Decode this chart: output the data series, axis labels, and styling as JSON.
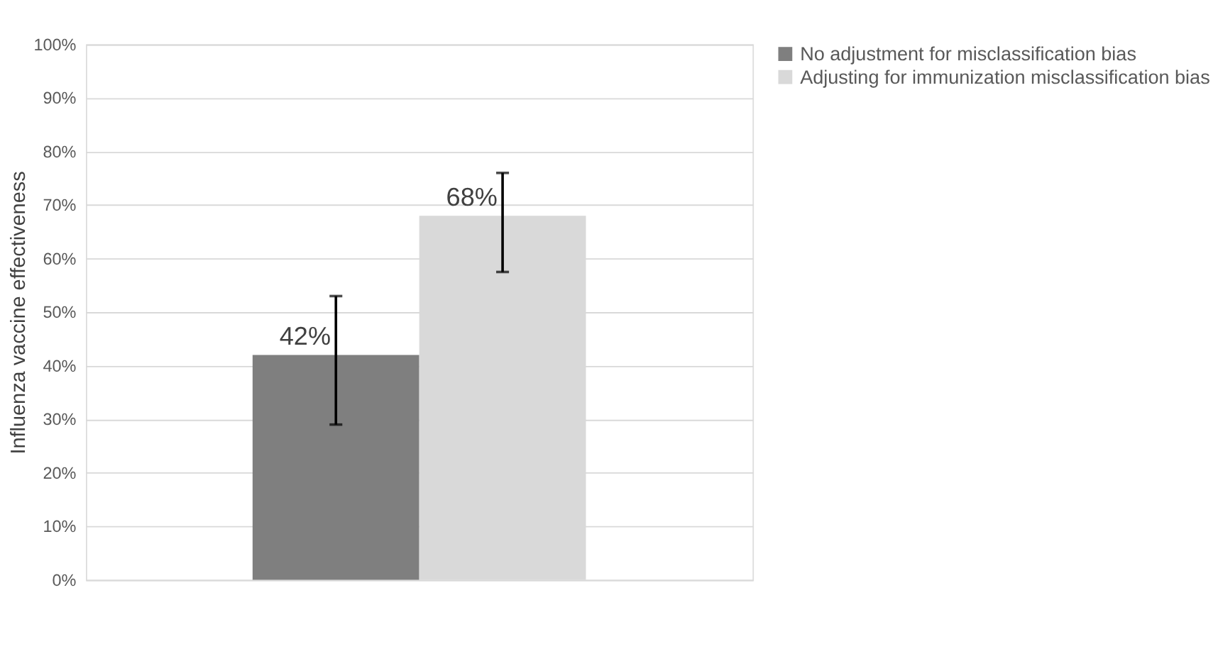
{
  "chart_data": {
    "type": "bar",
    "categories": [
      null
    ],
    "ylabel": "Influenza vaccine effectiveness",
    "series": [
      {
        "name": "No adjustment for misclassification bias",
        "color": "#7f7f7f",
        "values": [
          42
        ],
        "errors": [
          [
            29,
            53
          ]
        ],
        "value_labels": [
          "42%"
        ]
      },
      {
        "name": "Adjusting for immunization misclassification bias",
        "color": "#d9d9d9",
        "values": [
          68
        ],
        "errors": [
          [
            57.5,
            76
          ]
        ],
        "value_labels": [
          "68%"
        ]
      }
    ],
    "ylim": [
      0,
      100
    ],
    "yticks": [
      {
        "value": 0,
        "label": "0%"
      },
      {
        "value": 10,
        "label": "10%"
      },
      {
        "value": 20,
        "label": "20%"
      },
      {
        "value": 30,
        "label": "30%"
      },
      {
        "value": 40,
        "label": "40%"
      },
      {
        "value": 50,
        "label": "50%"
      },
      {
        "value": 60,
        "label": "60%"
      },
      {
        "value": 70,
        "label": "70%"
      },
      {
        "value": 80,
        "label": "80%"
      },
      {
        "value": 90,
        "label": "90%"
      },
      {
        "value": 100,
        "label": "100%"
      }
    ],
    "grid": "y",
    "legend": "right"
  }
}
